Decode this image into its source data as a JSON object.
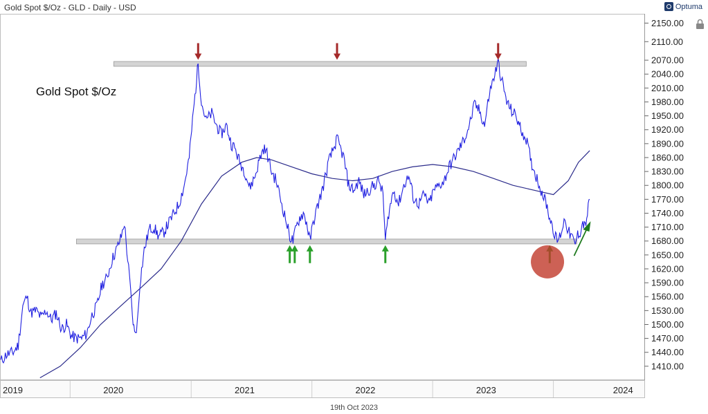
{
  "header": {
    "title": "Gold Spot $/Oz - GLD - Daily - USD",
    "brand": "Optuma"
  },
  "footer": {
    "date": "19th Oct 2023"
  },
  "colors": {
    "price": "#1f1fe0",
    "ma": "#2a2a8a",
    "resistance_arrow": "#a52a2a",
    "support_arrow": "#2aa02a",
    "highlight": "#c0392b",
    "level_band": "#d4d4d4"
  },
  "icons": {
    "lock": "lock-icon"
  },
  "chart_data": {
    "type": "line",
    "title": "",
    "annotation": "Gold Spot $/Oz",
    "y_axis": {
      "position": "right",
      "ylim": [
        1380,
        2170
      ],
      "ticks": [
        1410,
        1440,
        1470,
        1500,
        1530,
        1560,
        1590,
        1620,
        1650,
        1680,
        1710,
        1740,
        1770,
        1800,
        1830,
        1860,
        1890,
        1920,
        1950,
        1980,
        2010,
        2040,
        2070,
        2110,
        2150
      ],
      "tick_labels": [
        "1410.00",
        "1440.00",
        "1470.00",
        "1500.00",
        "1530.00",
        "1560.00",
        "1590.00",
        "1620.00",
        "1650.00",
        "1680.00",
        "1710.00",
        "1740.00",
        "1770.00",
        "1800.00",
        "1830.00",
        "1860.00",
        "1890.00",
        "1920.00",
        "1950.00",
        "1980.00",
        "2010.00",
        "2040.00",
        "2070.00",
        "2110.00",
        "2150.00"
      ]
    },
    "x_axis": {
      "xlim": [
        "2018-12-01",
        "2024-04-01"
      ],
      "years": [
        {
          "label": "2019",
          "x": "2018-12-01"
        },
        {
          "label": "2020",
          "x": "2019-10-01"
        },
        {
          "label": "2021",
          "x": "2020-11-01"
        },
        {
          "label": "2022",
          "x": "2021-11-01"
        },
        {
          "label": "2023",
          "x": "2022-11-01"
        },
        {
          "label": "2024",
          "x": "2023-12-20"
        }
      ],
      "separators": [
        "2019-07-01",
        "2020-07-01",
        "2021-07-01",
        "2022-07-01",
        "2023-07-01"
      ]
    },
    "series": [
      {
        "points": [
          [
            "2018-12-03",
            1420
          ],
          [
            "2018-12-20",
            1435
          ],
          [
            "2019-01-10",
            1440
          ],
          [
            "2019-01-25",
            1455
          ],
          [
            "2019-02-08",
            1540
          ],
          [
            "2019-02-20",
            1560
          ],
          [
            "2019-03-05",
            1525
          ],
          [
            "2019-03-20",
            1530
          ],
          [
            "2019-04-05",
            1515
          ],
          [
            "2019-04-20",
            1530
          ],
          [
            "2019-05-05",
            1510
          ],
          [
            "2019-05-20",
            1525
          ],
          [
            "2019-06-05",
            1490
          ],
          [
            "2019-06-20",
            1500
          ],
          [
            "2019-07-05",
            1475
          ],
          [
            "2019-07-20",
            1470
          ],
          [
            "2019-08-05",
            1470
          ],
          [
            "2019-08-20",
            1480
          ],
          [
            "2019-09-05",
            1520
          ],
          [
            "2019-09-20",
            1540
          ],
          [
            "2019-10-05",
            1585
          ],
          [
            "2019-10-20",
            1600
          ],
          [
            "2019-11-05",
            1640
          ],
          [
            "2019-11-20",
            1665
          ],
          [
            "2019-12-03",
            1690
          ],
          [
            "2019-12-12",
            1720
          ],
          [
            "2019-12-22",
            1640
          ],
          [
            "2019-12-30",
            1580
          ],
          [
            "2020-01-05",
            1520
          ],
          [
            "2020-01-12",
            1480
          ],
          [
            "2020-01-20",
            1500
          ],
          [
            "2020-01-28",
            1590
          ],
          [
            "2020-02-10",
            1660
          ],
          [
            "2020-02-25",
            1705
          ],
          [
            "2020-03-10",
            1710
          ],
          [
            "2020-03-25",
            1690
          ],
          [
            "2020-04-10",
            1700
          ],
          [
            "2020-04-25",
            1720
          ],
          [
            "2020-05-10",
            1740
          ],
          [
            "2020-05-25",
            1760
          ],
          [
            "2020-06-10",
            1800
          ],
          [
            "2020-06-25",
            1860
          ],
          [
            "2020-07-05",
            1940
          ],
          [
            "2020-07-15",
            2010
          ],
          [
            "2020-07-22",
            2065
          ],
          [
            "2020-08-01",
            1980
          ],
          [
            "2020-08-15",
            1940
          ],
          [
            "2020-09-01",
            1955
          ],
          [
            "2020-09-15",
            1930
          ],
          [
            "2020-09-30",
            1910
          ],
          [
            "2020-10-15",
            1930
          ],
          [
            "2020-10-30",
            1890
          ],
          [
            "2020-11-10",
            1880
          ],
          [
            "2020-11-25",
            1850
          ],
          [
            "2020-12-10",
            1830
          ],
          [
            "2020-12-25",
            1795
          ],
          [
            "2021-01-10",
            1820
          ],
          [
            "2021-01-25",
            1860
          ],
          [
            "2021-02-05",
            1880
          ],
          [
            "2021-02-15",
            1870
          ],
          [
            "2021-03-01",
            1830
          ],
          [
            "2021-03-15",
            1810
          ],
          [
            "2021-04-01",
            1760
          ],
          [
            "2021-04-15",
            1720
          ],
          [
            "2021-04-25",
            1690
          ],
          [
            "2021-05-05",
            1680
          ],
          [
            "2021-05-15",
            1710
          ],
          [
            "2021-05-25",
            1730
          ],
          [
            "2021-06-05",
            1740
          ],
          [
            "2021-06-15",
            1720
          ],
          [
            "2021-06-25",
            1680
          ],
          [
            "2021-07-05",
            1720
          ],
          [
            "2021-07-20",
            1760
          ],
          [
            "2021-08-05",
            1800
          ],
          [
            "2021-08-20",
            1850
          ],
          [
            "2021-09-05",
            1880
          ],
          [
            "2021-09-15",
            1900
          ],
          [
            "2021-09-25",
            1880
          ],
          [
            "2021-10-05",
            1860
          ],
          [
            "2021-10-20",
            1800
          ],
          [
            "2021-11-05",
            1790
          ],
          [
            "2021-11-20",
            1810
          ],
          [
            "2021-12-05",
            1780
          ],
          [
            "2021-12-20",
            1790
          ],
          [
            "2022-01-05",
            1800
          ],
          [
            "2022-01-20",
            1810
          ],
          [
            "2022-02-01",
            1780
          ],
          [
            "2022-02-08",
            1680
          ],
          [
            "2022-02-18",
            1740
          ],
          [
            "2022-03-05",
            1790
          ],
          [
            "2022-03-20",
            1760
          ],
          [
            "2022-04-05",
            1800
          ],
          [
            "2022-04-20",
            1820
          ],
          [
            "2022-05-05",
            1770
          ],
          [
            "2022-05-20",
            1760
          ],
          [
            "2022-06-05",
            1780
          ],
          [
            "2022-06-20",
            1760
          ],
          [
            "2022-07-05",
            1790
          ],
          [
            "2022-07-20",
            1800
          ],
          [
            "2022-08-05",
            1810
          ],
          [
            "2022-08-20",
            1840
          ],
          [
            "2022-09-05",
            1860
          ],
          [
            "2022-09-20",
            1880
          ],
          [
            "2022-10-05",
            1900
          ],
          [
            "2022-10-20",
            1930
          ],
          [
            "2022-11-05",
            1975
          ],
          [
            "2022-11-20",
            1960
          ],
          [
            "2022-12-05",
            1930
          ],
          [
            "2022-12-20",
            2000
          ],
          [
            "2023-01-05",
            2040
          ],
          [
            "2023-01-15",
            2065
          ],
          [
            "2023-01-25",
            2030
          ],
          [
            "2023-02-10",
            1980
          ],
          [
            "2023-02-25",
            1960
          ],
          [
            "2023-03-10",
            1950
          ],
          [
            "2023-03-25",
            1920
          ],
          [
            "2023-04-10",
            1900
          ],
          [
            "2023-04-25",
            1850
          ],
          [
            "2023-05-10",
            1820
          ],
          [
            "2023-05-25",
            1790
          ],
          [
            "2023-06-10",
            1760
          ],
          [
            "2023-06-20",
            1730
          ],
          [
            "2023-06-30",
            1710
          ],
          [
            "2023-07-05",
            1690
          ],
          [
            "2023-07-15",
            1680
          ],
          [
            "2023-07-25",
            1700
          ],
          [
            "2023-08-05",
            1730
          ],
          [
            "2023-08-15",
            1700
          ],
          [
            "2023-08-25",
            1690
          ],
          [
            "2023-09-05",
            1670
          ],
          [
            "2023-09-10",
            1690
          ],
          [
            "2023-09-20",
            1700
          ],
          [
            "2023-09-28",
            1720
          ],
          [
            "2023-10-05",
            1710
          ],
          [
            "2023-10-12",
            1740
          ],
          [
            "2023-10-19",
            1770
          ]
        ]
      },
      {
        "name": "",
        "points": [
          [
            "2019-04-01",
            1385
          ],
          [
            "2019-06-01",
            1410
          ],
          [
            "2019-08-01",
            1450
          ],
          [
            "2019-10-01",
            1500
          ],
          [
            "2019-12-01",
            1540
          ],
          [
            "2020-02-01",
            1580
          ],
          [
            "2020-04-01",
            1620
          ],
          [
            "2020-06-01",
            1680
          ],
          [
            "2020-08-01",
            1760
          ],
          [
            "2020-10-01",
            1820
          ],
          [
            "2020-12-01",
            1850
          ],
          [
            "2021-01-15",
            1860
          ],
          [
            "2021-03-01",
            1855
          ],
          [
            "2021-05-01",
            1840
          ],
          [
            "2021-07-01",
            1825
          ],
          [
            "2021-09-01",
            1815
          ],
          [
            "2021-11-01",
            1810
          ],
          [
            "2022-01-01",
            1815
          ],
          [
            "2022-03-01",
            1830
          ],
          [
            "2022-05-01",
            1840
          ],
          [
            "2022-07-01",
            1845
          ],
          [
            "2022-09-01",
            1840
          ],
          [
            "2022-11-01",
            1830
          ],
          [
            "2023-01-01",
            1815
          ],
          [
            "2023-03-01",
            1800
          ],
          [
            "2023-05-01",
            1790
          ],
          [
            "2023-07-01",
            1780
          ],
          [
            "2023-08-15",
            1810
          ],
          [
            "2023-09-15",
            1850
          ],
          [
            "2023-10-19",
            1875
          ]
        ]
      }
    ],
    "levels": [
      {
        "name": "resistance",
        "y": 2062,
        "x_range": [
          "2019-11-10",
          "2023-04-10"
        ]
      },
      {
        "name": "support",
        "y": 1679,
        "x_range": [
          "2019-07-20",
          "2023-09-10"
        ]
      }
    ],
    "markers": [
      {
        "type": "down-arrow",
        "x": "2020-07-22",
        "y": 2065
      },
      {
        "type": "down-arrow",
        "x": "2021-09-15",
        "y": 2065
      },
      {
        "type": "down-arrow",
        "x": "2023-01-15",
        "y": 2065
      },
      {
        "type": "up-arrow",
        "x": "2021-04-25",
        "y": 1680
      },
      {
        "type": "up-arrow",
        "x": "2021-05-10",
        "y": 1680
      },
      {
        "type": "up-arrow",
        "x": "2021-06-25",
        "y": 1680
      },
      {
        "type": "up-arrow",
        "x": "2022-02-08",
        "y": 1680
      },
      {
        "type": "up-arrow",
        "x": "2023-06-20",
        "y": 1680
      },
      {
        "type": "highlight-circle",
        "x": "2023-07-25",
        "y": 1650
      },
      {
        "type": "breakout-arrow",
        "x": "2023-09-10",
        "y": 1660
      }
    ]
  }
}
